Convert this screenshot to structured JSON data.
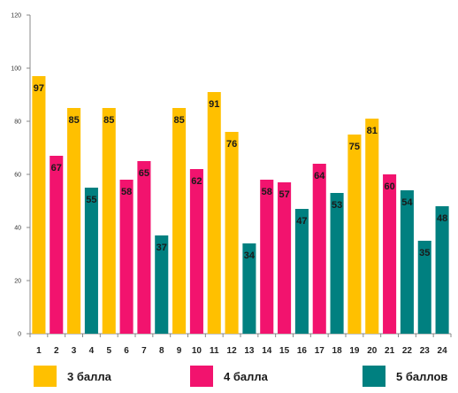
{
  "chart_data": {
    "type": "bar",
    "categories": [
      "1",
      "2",
      "3",
      "4",
      "5",
      "6",
      "7",
      "8",
      "9",
      "10",
      "11",
      "12",
      "13",
      "14",
      "15",
      "16",
      "17",
      "18",
      "19",
      "20",
      "21",
      "22",
      "23",
      "24"
    ],
    "values": [
      97,
      67,
      85,
      55,
      85,
      58,
      65,
      37,
      85,
      62,
      91,
      76,
      34,
      58,
      57,
      47,
      64,
      53,
      75,
      81,
      60,
      54,
      35,
      48
    ],
    "groups": [
      "3 балла",
      "4 балла",
      "3 балла",
      "5 баллов",
      "3 балла",
      "4 балла",
      "4 балла",
      "5 баллов",
      "3 балла",
      "4 балла",
      "3 балла",
      "3 балла",
      "5 баллов",
      "4 балла",
      "4 балла",
      "5 баллов",
      "4 балла",
      "5 баллов",
      "3 балла",
      "3 балла",
      "4 балла",
      "5 баллов",
      "5 баллов",
      "5 баллов"
    ],
    "yticks": [
      0,
      20,
      40,
      60,
      80,
      100,
      120
    ],
    "ylim": [
      0,
      120
    ],
    "grid": false,
    "legend_position": "bottom",
    "legend": [
      {
        "name": "3 балла",
        "color": "#FFC000"
      },
      {
        "name": "4 балла",
        "color": "#F2136E"
      },
      {
        "name": "5 баллов",
        "color": "#008080"
      }
    ]
  }
}
